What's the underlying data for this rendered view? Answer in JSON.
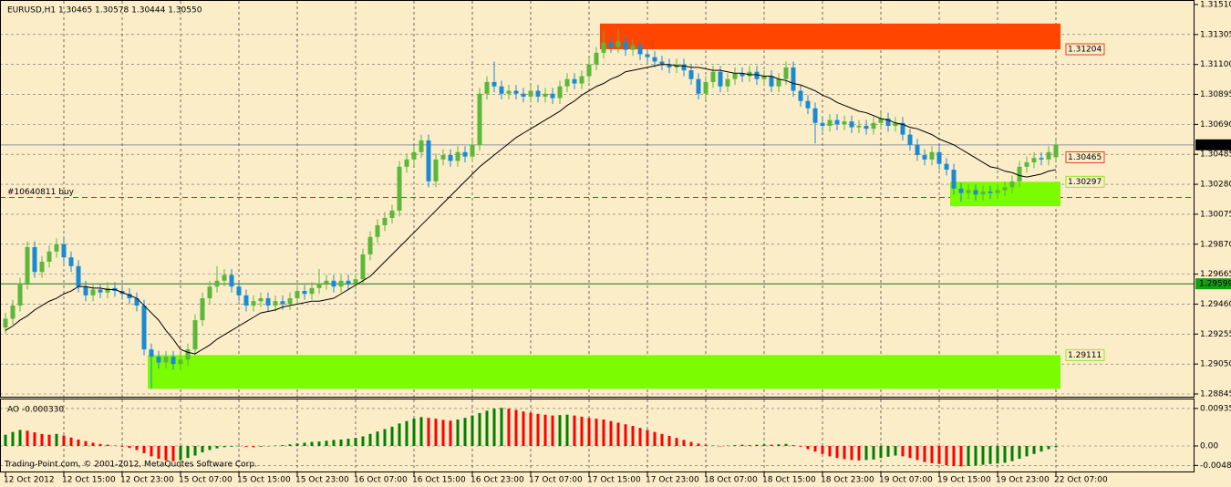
{
  "chart_data": [
    {
      "type": "candlestick",
      "title": "EURUSD,H1  1.30465 1.30578 1.30444 1.30550",
      "open": [
        1.293,
        1.2936,
        1.2945,
        1.296,
        1.2985,
        1.2968,
        1.2975,
        1.2982,
        1.2987,
        1.2978,
        1.2972,
        1.2958,
        1.2952,
        1.2956,
        1.2954,
        1.2957,
        1.2955,
        1.2953,
        1.295,
        1.2945,
        1.2915,
        1.291,
        1.2906,
        1.291,
        1.2905,
        1.2908,
        1.2915,
        1.2935,
        1.295,
        1.2958,
        1.2962,
        1.2966,
        1.2958,
        1.2952,
        1.2945,
        1.2948,
        1.295,
        1.2945,
        1.2948,
        1.2946,
        1.295,
        1.2955,
        1.2953,
        1.2957,
        1.296,
        1.2962,
        1.2958,
        1.2962,
        1.296,
        1.2963,
        1.298,
        1.2992,
        1.3,
        1.3005,
        1.301,
        1.304,
        1.3045,
        1.305,
        1.3058,
        1.303,
        1.3045,
        1.3048,
        1.3044,
        1.305,
        1.3047,
        1.3055,
        1.309,
        1.3098,
        1.3095,
        1.309,
        1.3092,
        1.309,
        1.3088,
        1.3092,
        1.3088,
        1.309,
        1.3087,
        1.3095,
        1.31,
        1.3097,
        1.3102,
        1.311,
        1.3118,
        1.3125,
        1.3122,
        1.3126,
        1.312,
        1.3123,
        1.3117,
        1.3115,
        1.3112,
        1.311,
        1.3108,
        1.311,
        1.3106,
        1.31,
        1.309,
        1.3098,
        1.3105,
        1.3095,
        1.31,
        1.3104,
        1.3102,
        1.3105,
        1.31,
        1.3102,
        1.3095,
        1.31,
        1.3108,
        1.3092,
        1.3085,
        1.308,
        1.307,
        1.3068,
        1.3072,
        1.3069,
        1.3071,
        1.3067,
        1.3068,
        1.3066,
        1.307,
        1.3073,
        1.3068,
        1.307,
        1.3062,
        1.3055,
        1.3048,
        1.3045,
        1.305,
        1.3042,
        1.3038,
        1.3025,
        1.3022,
        1.3024,
        1.3021,
        1.3023,
        1.3022,
        1.3024,
        1.3026,
        1.303,
        1.304,
        1.3043,
        1.3046,
        1.3045,
        1.30465
      ],
      "high": [
        1.294,
        1.2949,
        1.2964,
        1.2989,
        1.2989,
        1.2979,
        1.2986,
        1.2991,
        1.2991,
        1.2982,
        1.2976,
        1.2962,
        1.296,
        1.296,
        1.2961,
        1.2961,
        1.2959,
        1.2957,
        1.2954,
        1.2949,
        1.2919,
        1.2914,
        1.2914,
        1.2914,
        1.2912,
        1.2919,
        1.2939,
        1.2954,
        1.2962,
        1.2972,
        1.297,
        1.297,
        1.2962,
        1.2956,
        1.2952,
        1.2954,
        1.2954,
        1.2952,
        1.2952,
        1.2954,
        1.2959,
        1.2959,
        1.2961,
        1.297,
        1.2966,
        1.2966,
        1.2966,
        1.2966,
        1.2967,
        1.2984,
        1.2996,
        1.3004,
        1.3009,
        1.3014,
        1.3044,
        1.3049,
        1.3054,
        1.3062,
        1.3062,
        1.3049,
        1.3052,
        1.3052,
        1.3054,
        1.3054,
        1.3059,
        1.3094,
        1.3102,
        1.3112,
        1.3099,
        1.3096,
        1.3096,
        1.3094,
        1.3096,
        1.3096,
        1.3094,
        1.3094,
        1.3099,
        1.3104,
        1.3104,
        1.3106,
        1.3114,
        1.3122,
        1.3133,
        1.3129,
        1.3134,
        1.313,
        1.3127,
        1.3127,
        1.3121,
        1.3119,
        1.3116,
        1.3114,
        1.3114,
        1.3114,
        1.311,
        1.3104,
        1.3102,
        1.3109,
        1.3109,
        1.3104,
        1.3108,
        1.3108,
        1.3109,
        1.3109,
        1.3106,
        1.3106,
        1.3104,
        1.3112,
        1.3112,
        1.3096,
        1.3089,
        1.3084,
        1.3074,
        1.3076,
        1.3076,
        1.3075,
        1.3075,
        1.3072,
        1.3072,
        1.3074,
        1.3077,
        1.3077,
        1.3074,
        1.3074,
        1.3066,
        1.3059,
        1.3052,
        1.3054,
        1.3054,
        1.3046,
        1.3042,
        1.3029,
        1.3028,
        1.3028,
        1.3027,
        1.3027,
        1.3028,
        1.303,
        1.3034,
        1.3044,
        1.3047,
        1.305,
        1.305,
        1.3054,
        1.30578
      ],
      "low": [
        1.2926,
        1.2932,
        1.2941,
        1.2956,
        1.2964,
        1.2964,
        1.2971,
        1.2978,
        1.2974,
        1.2968,
        1.2954,
        1.2948,
        1.2948,
        1.295,
        1.295,
        1.2951,
        1.2949,
        1.2946,
        1.2941,
        1.2911,
        1.2888,
        1.2902,
        1.2902,
        1.2901,
        1.2901,
        1.2904,
        1.2911,
        1.2931,
        1.2946,
        1.2954,
        1.2958,
        1.2954,
        1.2948,
        1.2941,
        1.2941,
        1.2944,
        1.2941,
        1.2941,
        1.2942,
        1.2942,
        1.2946,
        1.2949,
        1.2949,
        1.2953,
        1.2956,
        1.2954,
        1.2954,
        1.2956,
        1.2956,
        1.2959,
        1.2976,
        1.2988,
        1.2996,
        1.3001,
        1.3006,
        1.3036,
        1.3041,
        1.3046,
        1.3026,
        1.3026,
        1.3041,
        1.304,
        1.304,
        1.3043,
        1.3043,
        1.3051,
        1.3086,
        1.3091,
        1.3086,
        1.3086,
        1.3086,
        1.3084,
        1.3084,
        1.3084,
        1.3084,
        1.3083,
        1.3083,
        1.3091,
        1.3093,
        1.3093,
        1.3098,
        1.3106,
        1.3114,
        1.3118,
        1.3118,
        1.3116,
        1.3116,
        1.3113,
        1.3111,
        1.3108,
        1.3106,
        1.3104,
        1.3104,
        1.3102,
        1.3096,
        1.3086,
        1.3086,
        1.3094,
        1.3091,
        1.3091,
        1.3096,
        1.3098,
        1.3098,
        1.3096,
        1.3096,
        1.3091,
        1.3091,
        1.3096,
        1.3088,
        1.3081,
        1.3076,
        1.3056,
        1.3064,
        1.3064,
        1.3065,
        1.3065,
        1.3063,
        1.3063,
        1.3062,
        1.3062,
        1.3066,
        1.3064,
        1.3064,
        1.3058,
        1.3051,
        1.3044,
        1.3041,
        1.3041,
        1.3038,
        1.3034,
        1.3021,
        1.3016,
        1.3018,
        1.3017,
        1.3017,
        1.3018,
        1.3018,
        1.302,
        1.3022,
        1.3026,
        1.3036,
        1.3039,
        1.3041,
        1.3041,
        1.30444
      ],
      "close": [
        1.2936,
        1.2945,
        1.296,
        1.2985,
        1.2968,
        1.2975,
        1.2982,
        1.2987,
        1.2978,
        1.2972,
        1.2958,
        1.2952,
        1.2956,
        1.2954,
        1.2957,
        1.2955,
        1.2953,
        1.295,
        1.2945,
        1.2915,
        1.291,
        1.2906,
        1.291,
        1.2905,
        1.2908,
        1.2915,
        1.2935,
        1.295,
        1.2958,
        1.2962,
        1.2966,
        1.2958,
        1.2952,
        1.2945,
        1.2948,
        1.295,
        1.2945,
        1.2948,
        1.2946,
        1.295,
        1.2955,
        1.2953,
        1.2957,
        1.296,
        1.2962,
        1.2958,
        1.2962,
        1.296,
        1.2963,
        1.298,
        1.2992,
        1.3,
        1.3005,
        1.301,
        1.304,
        1.3045,
        1.305,
        1.3058,
        1.303,
        1.3045,
        1.3048,
        1.3044,
        1.305,
        1.3047,
        1.3055,
        1.309,
        1.3098,
        1.3095,
        1.309,
        1.3092,
        1.309,
        1.3088,
        1.3092,
        1.3088,
        1.309,
        1.3087,
        1.3095,
        1.31,
        1.3097,
        1.3102,
        1.311,
        1.3118,
        1.3125,
        1.3122,
        1.3126,
        1.312,
        1.3123,
        1.3117,
        1.3115,
        1.3112,
        1.311,
        1.3108,
        1.311,
        1.3106,
        1.31,
        1.309,
        1.3098,
        1.3105,
        1.3095,
        1.31,
        1.3104,
        1.3102,
        1.3105,
        1.31,
        1.3102,
        1.3095,
        1.31,
        1.3108,
        1.3092,
        1.3085,
        1.308,
        1.307,
        1.3068,
        1.3072,
        1.3069,
        1.3071,
        1.3067,
        1.3068,
        1.3066,
        1.307,
        1.3073,
        1.3068,
        1.307,
        1.3062,
        1.3055,
        1.3048,
        1.3045,
        1.305,
        1.3042,
        1.3038,
        1.3025,
        1.3022,
        1.3024,
        1.3021,
        1.3023,
        1.3022,
        1.3024,
        1.3026,
        1.303,
        1.304,
        1.3043,
        1.3046,
        1.3045,
        1.305,
        1.3055
      ],
      "up_color": "#5cb83a",
      "down_color": "#1a8ad4",
      "ma": {
        "color": "#000000",
        "values": [
          1.2928,
          1.2931,
          1.2935,
          1.2938,
          1.2942,
          1.2945,
          1.2948,
          1.295,
          1.2953,
          1.2955,
          1.2958,
          1.2958,
          1.2957,
          1.2957,
          1.2956,
          1.2956,
          1.2954,
          1.2952,
          1.295,
          1.2945,
          1.294,
          1.2935,
          1.2928,
          1.2922,
          1.2915,
          1.2913,
          1.2912,
          1.2915,
          1.2918,
          1.2922,
          1.2925,
          1.2928,
          1.2931,
          1.2934,
          1.2937,
          1.294,
          1.2941,
          1.2942,
          1.2944,
          1.2945,
          1.2946,
          1.2947,
          1.2948,
          1.2948,
          1.2949,
          1.295,
          1.2953,
          1.2956,
          1.2959,
          1.2962,
          1.2965,
          1.297,
          1.2975,
          1.298,
          1.2985,
          1.299,
          1.2995,
          1.3,
          1.3005,
          1.301,
          1.3015,
          1.302,
          1.3025,
          1.303,
          1.3035,
          1.304,
          1.3044,
          1.3048,
          1.3052,
          1.3056,
          1.306,
          1.3063,
          1.3066,
          1.3069,
          1.3072,
          1.3075,
          1.3078,
          1.3082,
          1.3085,
          1.3089,
          1.3092,
          1.3095,
          1.3097,
          1.31,
          1.3102,
          1.3105,
          1.3106,
          1.3107,
          1.3108,
          1.3109,
          1.311,
          1.311,
          1.3109,
          1.3109,
          1.3108,
          1.3108,
          1.3107,
          1.3106,
          1.3106,
          1.3105,
          1.3104,
          1.3104,
          1.3103,
          1.3103,
          1.3102,
          1.3102,
          1.31,
          1.3099,
          1.3097,
          1.3096,
          1.3094,
          1.3092,
          1.3089,
          1.3087,
          1.3084,
          1.3082,
          1.308,
          1.3078,
          1.3077,
          1.3075,
          1.3073,
          1.3072,
          1.307,
          1.3069,
          1.3067,
          1.3066,
          1.3064,
          1.3062,
          1.3059,
          1.3057,
          1.3055,
          1.3052,
          1.3049,
          1.3046,
          1.3043,
          1.304,
          1.3039,
          1.3037,
          1.3036,
          1.3034,
          1.3033,
          1.3034,
          1.3035,
          1.3037,
          1.3038
        ]
      },
      "ylim": [
        1.28845,
        1.3151
      ],
      "yticks": [
        {
          "value": 1.3151,
          "label": "1.31510"
        },
        1.31305,
        {
          "value": 1.311,
          "label": "1.31100"
        },
        1.30895,
        {
          "value": 1.3069,
          "label": "1.30690"
        },
        1.30485,
        {
          "value": 1.3028,
          "label": "1.30280"
        },
        1.30075,
        {
          "value": 1.2987,
          "label": "1.29870"
        },
        1.29665,
        {
          "value": 1.2946,
          "label": "1.29460"
        },
        1.29255,
        {
          "value": 1.2905,
          "label": "1.29050"
        },
        1.28845
      ],
      "grid": true,
      "zones": [
        {
          "start": 82,
          "end": 144,
          "high": 1.3138,
          "low": 1.31204,
          "label_edge": "low",
          "color": "#ff4500",
          "label_color": "#e8401c"
        },
        {
          "start": 20,
          "end": 144,
          "high": 1.29111,
          "low": 1.2888,
          "label_edge": "high",
          "color": "#7cfc00",
          "label_color": "#8fe82a"
        },
        {
          "start": 130,
          "end": 144,
          "high": 1.30297,
          "low": 1.3013,
          "label_edge": "high",
          "color": "#7cfc00",
          "label_color": "#8fe82a"
        }
      ],
      "markers": [
        {
          "price": 1.30465,
          "color": "#e8401c"
        }
      ],
      "levels": [
        {
          "price": {
            "value": 1.3055,
            "label": "1.30550"
          },
          "color": "#8c96a8",
          "box": "#000000"
        },
        {
          "price": 1.29599,
          "color": "#1e6e1e",
          "box": "#10a010"
        }
      ],
      "order": {
        "text": "#10640811 buy",
        "price": 1.3019,
        "color": "#e02020"
      },
      "footer": "Trading-Point.com, © 2001-2012, MetaQuotes Software Corp."
    },
    {
      "type": "bar",
      "title": "AO -0.000330",
      "categories": [
        "12 Oct 2012",
        null,
        null,
        null,
        null,
        null,
        null,
        null,
        "12 Oct 15:00",
        null,
        null,
        null,
        null,
        null,
        null,
        null,
        "12 Oct 23:00",
        null,
        null,
        null,
        null,
        null,
        null,
        null,
        "15 Oct 07:00",
        null,
        null,
        null,
        null,
        null,
        null,
        null,
        "15 Oct 15:00",
        null,
        null,
        null,
        null,
        null,
        null,
        null,
        "15 Oct 23:00",
        null,
        null,
        null,
        null,
        null,
        null,
        null,
        "16 Oct 07:00",
        null,
        null,
        null,
        null,
        null,
        null,
        null,
        "16 Oct 15:00",
        null,
        null,
        null,
        null,
        null,
        null,
        null,
        "16 Oct 23:00",
        null,
        null,
        null,
        null,
        null,
        null,
        null,
        "17 Oct 07:00",
        null,
        null,
        null,
        null,
        null,
        null,
        null,
        "17 Oct 15:00",
        null,
        null,
        null,
        null,
        null,
        null,
        null,
        "17 Oct 23:00",
        null,
        null,
        null,
        null,
        null,
        null,
        null,
        "18 Oct 07:00",
        null,
        null,
        null,
        null,
        null,
        null,
        null,
        "18 Oct 15:00",
        null,
        null,
        null,
        null,
        null,
        null,
        null,
        "18 Oct 23:00",
        null,
        null,
        null,
        null,
        null,
        null,
        null,
        "19 Oct 07:00",
        null,
        null,
        null,
        null,
        null,
        null,
        null,
        "19 Oct 15:00",
        null,
        null,
        null,
        null,
        null,
        null,
        null,
        "19 Oct 23:00",
        null,
        null,
        null,
        null,
        null,
        null,
        null,
        "22 Oct 07:00"
      ],
      "values": [
        0.0028,
        0.0035,
        0.004,
        0.0038,
        0.0034,
        0.003,
        0.0028,
        0.003,
        0.0026,
        0.0021,
        0.0016,
        0.0012,
        0.0008,
        0.0005,
        0.0003,
        0.0001,
        -0.0002,
        -0.0005,
        -0.001,
        -0.0018,
        -0.0026,
        -0.0032,
        -0.0036,
        -0.0038,
        -0.0035,
        -0.003,
        -0.0024,
        -0.0016,
        -0.001,
        -0.0006,
        -0.0003,
        -0.0002,
        -0.0001,
        -0.0002,
        -0.0003,
        -0.0002,
        -0.0001,
        0.0001,
        0.0002,
        0.0004,
        0.0006,
        0.0008,
        0.001,
        0.0011,
        0.0013,
        0.0015,
        0.0016,
        0.0018,
        0.002,
        0.0024,
        0.003,
        0.0036,
        0.0042,
        0.0048,
        0.0056,
        0.0062,
        0.0068,
        0.0072,
        0.007,
        0.0068,
        0.0065,
        0.0063,
        0.0066,
        0.007,
        0.0076,
        0.0082,
        0.0088,
        0.0093,
        0.0095,
        0.0093,
        0.009,
        0.0086,
        0.0083,
        0.008,
        0.0078,
        0.0076,
        0.0077,
        0.0078,
        0.0076,
        0.0073,
        0.007,
        0.0068,
        0.0066,
        0.0062,
        0.0058,
        0.0054,
        0.005,
        0.0045,
        0.004,
        0.0035,
        0.003,
        0.0025,
        0.002,
        0.0015,
        0.001,
        0.0006,
        0.0003,
        0.0001,
        -0.0001,
        0.0001,
        0.0002,
        0.0003,
        0.0002,
        0.0003,
        0.0004,
        0.0003,
        0.0004,
        0.0005,
        0.0002,
        -0.0002,
        -0.0008,
        -0.0014,
        -0.002,
        -0.0026,
        -0.003,
        -0.0033,
        -0.0035,
        -0.0036,
        -0.0035,
        -0.0034,
        -0.003,
        -0.0027,
        -0.0024,
        -0.0026,
        -0.003,
        -0.0035,
        -0.004,
        -0.0043,
        -0.0045,
        -0.0048,
        -0.005,
        -0.0051,
        -0.005,
        -0.0049,
        -0.0047,
        -0.0045,
        -0.0044,
        -0.0042,
        -0.0038,
        -0.0032,
        -0.0026,
        -0.002,
        -0.0014,
        -0.0008,
        -0.00033
      ],
      "up_color": "#008000",
      "down_color": "#ff0000",
      "ylim": [
        -0.0066,
        0.0116
      ],
      "yticks": [
        0.00935,
        {
          "value": 0,
          "label": "0.00"
        },
        -0.00486
      ],
      "grid": true
    }
  ]
}
